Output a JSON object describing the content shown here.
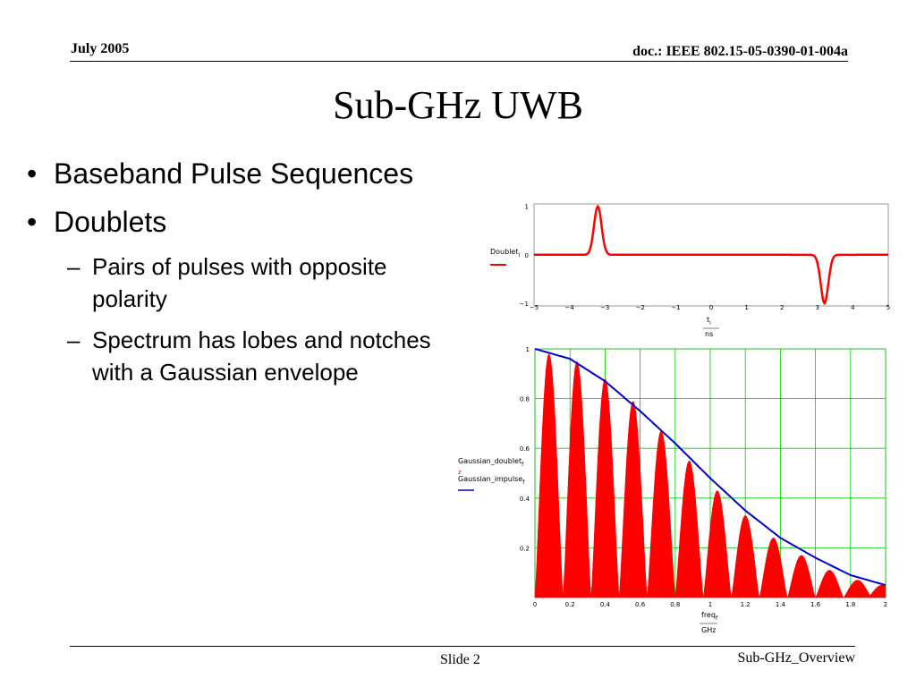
{
  "header": {
    "date": "July 2005",
    "doc_id": "doc.: IEEE 802.15-05-0390-01-004a"
  },
  "slide": {
    "title": "Sub-GHz UWB",
    "bullets": [
      {
        "text": "Baseband Pulse Sequences",
        "subs": []
      },
      {
        "text": "Doublets",
        "subs": [
          "Pairs of pulses with opposite polarity",
          "Spectrum has lobes and notches with a Gaussian envelope"
        ]
      }
    ]
  },
  "footer": {
    "slide_label": "Slide 2",
    "name": "Sub-GHz_Overview"
  },
  "colors": {
    "doublet": "#ff0000",
    "envelope": "#0000cc",
    "grid": "#00cc00",
    "frame": "#999999"
  },
  "chart_data": [
    {
      "type": "line",
      "ylabel": "Doublet",
      "ylabel_sub": "i",
      "xlabel_num": "t",
      "xlabel_num_sub": "i",
      "xlabel_den": "ns",
      "xlim": [
        -5,
        5
      ],
      "ylim": [
        -1,
        1
      ],
      "x_ticks": [
        "−5",
        "−4",
        "−3",
        "−2",
        "−1",
        "0",
        "1",
        "2",
        "3",
        "4",
        "5"
      ],
      "y_ticks": [
        "1",
        "0",
        "−1"
      ],
      "grid": false,
      "series": [
        {
          "name": "Doublet",
          "pulses": [
            {
              "center": -3.2,
              "amplitude": 1
            },
            {
              "center": 3.2,
              "amplitude": -1
            }
          ],
          "pulse_width": 0.15
        }
      ]
    },
    {
      "type": "area",
      "ylabel_series": [
        "Gaussian_doublet",
        "Gaussian_impulse"
      ],
      "ylabel_sub": "f",
      "xlabel_num": "freq",
      "xlabel_num_sub": "f",
      "xlabel_den": "GHz",
      "xlim": [
        0,
        2
      ],
      "ylim": [
        0,
        1
      ],
      "x_ticks": [
        "0",
        "0.2",
        "0.4",
        "0.6",
        "0.8",
        "1",
        "1.2",
        "1.4",
        "1.6",
        "1.8",
        "2"
      ],
      "y_ticks": [
        "1",
        "0.8",
        "0.6",
        "0.4",
        "0.2"
      ],
      "grid": true,
      "series": [
        {
          "name": "Gaussian_doublet",
          "lobe_peaks_x": [
            0.08,
            0.24,
            0.4,
            0.56,
            0.72,
            0.88,
            1.04,
            1.2,
            1.36,
            1.52,
            1.68,
            1.84,
            1.98
          ],
          "lobe_peaks_y": [
            0.98,
            0.95,
            0.88,
            0.79,
            0.67,
            0.55,
            0.43,
            0.33,
            0.24,
            0.17,
            0.11,
            0.07,
            0.05
          ]
        },
        {
          "name": "Gaussian_impulse",
          "x": [
            0,
            0.2,
            0.4,
            0.6,
            0.8,
            1,
            1.2,
            1.4,
            1.6,
            1.8,
            2
          ],
          "y": [
            1.0,
            0.96,
            0.87,
            0.75,
            0.62,
            0.48,
            0.35,
            0.24,
            0.16,
            0.09,
            0.05
          ]
        }
      ]
    }
  ]
}
